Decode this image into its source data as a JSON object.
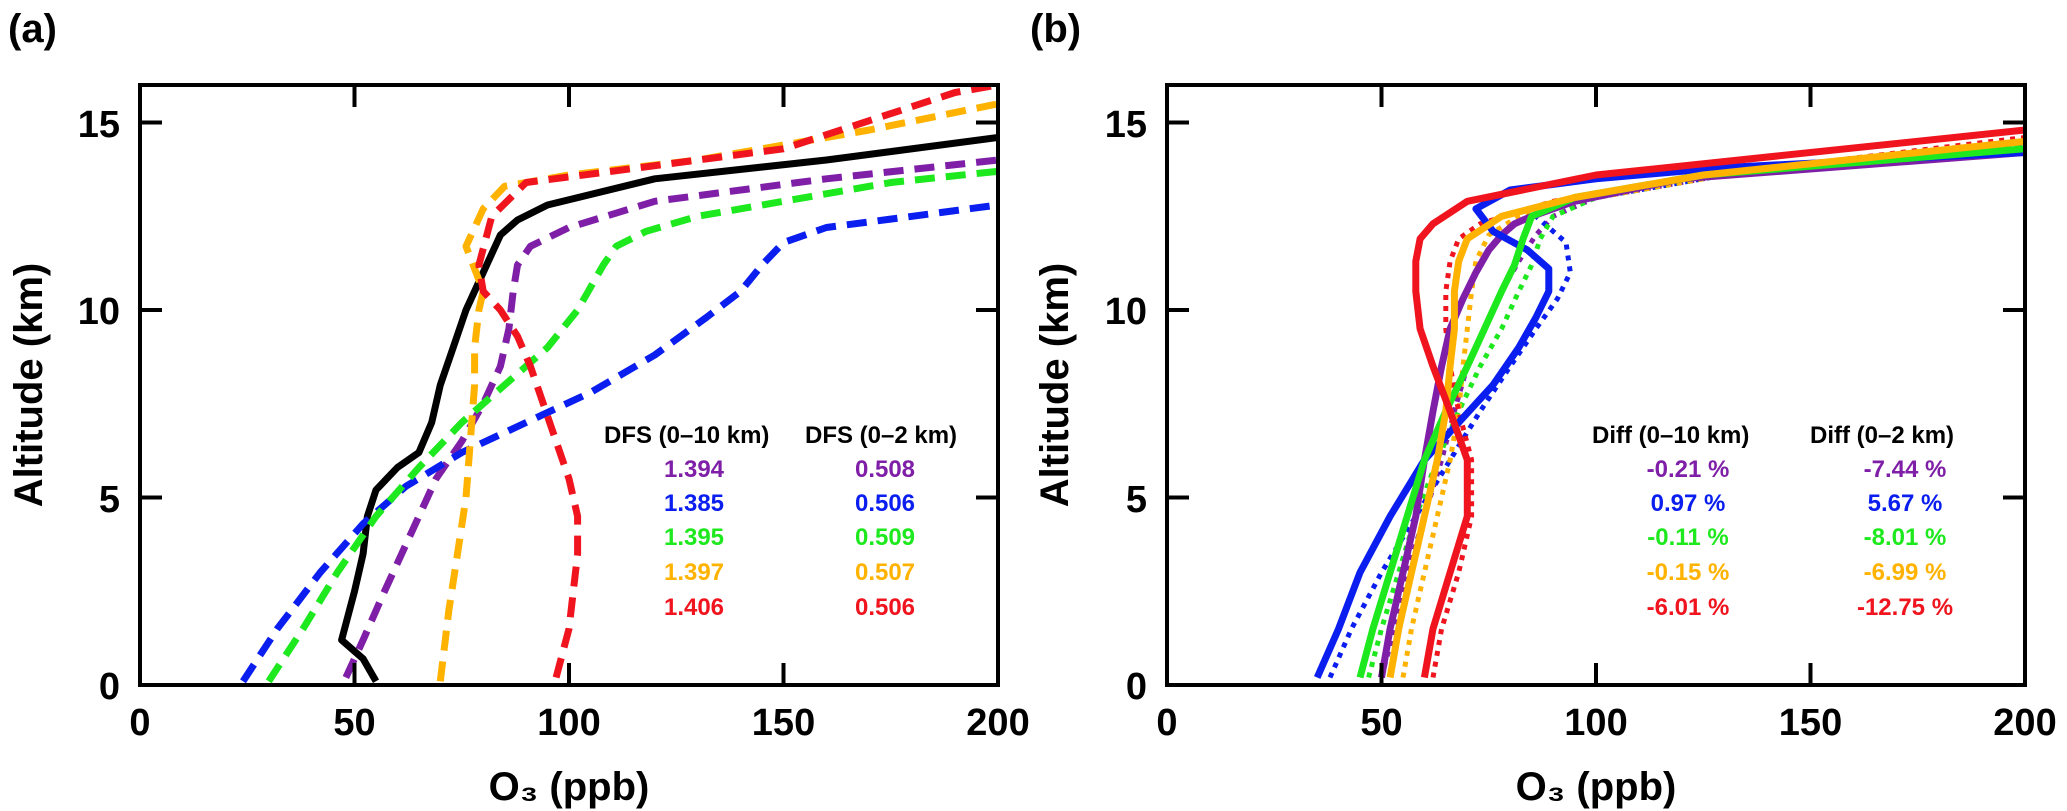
{
  "colors": {
    "black": "#000000",
    "purple": "#7f1fa8",
    "blue": "#0a1ef0",
    "green": "#1ee81e",
    "orange": "#ffb300",
    "red": "#f0141e"
  },
  "chart_data": [
    {
      "type": "line",
      "panel_label": "(a)",
      "title": "",
      "xlabel": "O₃ (ppb)",
      "ylabel": "Altitude (km)",
      "xlim": [
        0,
        200
      ],
      "ylim": [
        0,
        16
      ],
      "xticks": [
        "0",
        "50",
        "100",
        "150",
        "200"
      ],
      "yticks": [
        "0",
        "5",
        "10",
        "15"
      ],
      "xtick_values": [
        0,
        50,
        100,
        150,
        200
      ],
      "ytick_values": [
        0,
        5,
        10,
        15
      ],
      "series": [
        {
          "name": "observed",
          "color": "black",
          "style": "solid",
          "x": [
            55,
            52,
            47,
            50,
            52,
            53,
            55,
            60,
            65,
            68,
            70,
            73,
            76,
            80,
            84,
            88,
            95,
            120,
            160,
            200
          ],
          "y": [
            0.1,
            0.7,
            1.2,
            2.5,
            3.5,
            4.5,
            5.2,
            5.8,
            6.2,
            7.0,
            8.0,
            9.0,
            10.0,
            11.0,
            12.0,
            12.4,
            12.8,
            13.5,
            14.0,
            14.6
          ]
        },
        {
          "name": "purple",
          "color": "purple",
          "style": "dashed",
          "x": [
            48,
            52,
            57,
            61,
            65,
            69,
            75,
            80,
            84,
            86,
            87,
            88,
            91,
            100,
            120,
            160,
            200
          ],
          "y": [
            0.2,
            1.2,
            2.5,
            3.5,
            4.5,
            5.5,
            6.5,
            7.5,
            8.5,
            9.5,
            10.5,
            11.2,
            11.7,
            12.2,
            12.9,
            13.5,
            14.0
          ]
        },
        {
          "name": "blue",
          "color": "blue",
          "style": "dashed",
          "x": [
            24,
            32,
            42,
            52,
            62,
            75,
            90,
            105,
            120,
            132,
            140,
            145,
            150,
            160,
            180,
            200
          ],
          "y": [
            0.1,
            1.5,
            3.0,
            4.3,
            5.3,
            6.2,
            7.0,
            7.8,
            8.8,
            9.8,
            10.5,
            11.2,
            11.8,
            12.2,
            12.5,
            12.8
          ]
        },
        {
          "name": "green",
          "color": "green",
          "style": "dashed",
          "x": [
            30,
            38,
            46,
            55,
            65,
            75,
            85,
            95,
            102,
            106,
            108,
            111,
            118,
            130,
            150,
            175,
            200
          ],
          "y": [
            0.1,
            1.5,
            3.0,
            4.5,
            5.8,
            7.0,
            8.0,
            9.0,
            10.0,
            10.8,
            11.2,
            11.7,
            12.1,
            12.5,
            12.9,
            13.4,
            13.7
          ]
        },
        {
          "name": "orange",
          "color": "orange",
          "style": "dashed",
          "x": [
            70,
            72,
            74,
            76,
            77,
            78,
            78,
            79,
            80,
            79,
            76,
            80,
            85,
            100,
            130,
            170,
            200
          ],
          "y": [
            0.1,
            2.0,
            3.5,
            5.0,
            6.5,
            8.0,
            9.0,
            10.0,
            10.5,
            10.8,
            11.7,
            12.7,
            13.3,
            13.6,
            14.0,
            14.8,
            15.5
          ]
        },
        {
          "name": "red",
          "color": "red",
          "style": "dashed",
          "x": [
            97,
            100,
            101,
            102,
            102,
            100,
            97,
            94,
            91,
            88,
            84,
            80,
            79,
            82,
            90,
            110,
            150,
            190,
            200
          ],
          "y": [
            0.2,
            1.5,
            2.5,
            3.5,
            4.5,
            5.5,
            6.5,
            7.5,
            8.5,
            9.3,
            10.0,
            10.5,
            11.2,
            12.5,
            13.4,
            13.7,
            14.3,
            15.8,
            16.0
          ]
        }
      ],
      "annotation": {
        "headers": [
          "DFS (0–10 km)",
          "DFS (0–2 km)"
        ],
        "rows": [
          {
            "color": "purple",
            "col1": "1.394",
            "col2": "0.508"
          },
          {
            "color": "blue",
            "col1": "1.385",
            "col2": "0.506"
          },
          {
            "color": "green",
            "col1": "1.395",
            "col2": "0.509"
          },
          {
            "color": "orange",
            "col1": "1.397",
            "col2": "0.507"
          },
          {
            "color": "red",
            "col1": "1.406",
            "col2": "0.506"
          }
        ]
      }
    },
    {
      "type": "line",
      "panel_label": "(b)",
      "title": "",
      "xlabel": "O₃ (ppb)",
      "ylabel": "Altitude (km)",
      "xlim": [
        0,
        200
      ],
      "ylim": [
        0,
        16
      ],
      "xticks": [
        "0",
        "50",
        "100",
        "150",
        "200"
      ],
      "yticks": [
        "0",
        "5",
        "10",
        "15"
      ],
      "xtick_values": [
        0,
        50,
        100,
        150,
        200
      ],
      "ytick_values": [
        0,
        5,
        10,
        15
      ],
      "series": [
        {
          "name": "purple-dotted",
          "color": "purple",
          "style": "dotted",
          "x": [
            50,
            53,
            56,
            60,
            64,
            67,
            70,
            74,
            78,
            82,
            86,
            90,
            100,
            130,
            200
          ],
          "y": [
            0.2,
            1.5,
            3.0,
            4.5,
            6.0,
            7.3,
            8.5,
            9.5,
            10.5,
            11.3,
            12.0,
            12.5,
            13.0,
            13.6,
            14.4
          ]
        },
        {
          "name": "blue-dotted",
          "color": "blue",
          "style": "dotted",
          "x": [
            38,
            43,
            50,
            58,
            66,
            73,
            80,
            86,
            91,
            94,
            93,
            88,
            85,
            100,
            130,
            200
          ],
          "y": [
            0.2,
            1.5,
            3.0,
            4.5,
            6.0,
            7.3,
            8.5,
            9.5,
            10.3,
            11.0,
            11.8,
            12.3,
            12.6,
            13.0,
            13.6,
            14.3
          ]
        },
        {
          "name": "green-dotted",
          "color": "green",
          "style": "dotted",
          "x": [
            47,
            50,
            54,
            58,
            63,
            68,
            73,
            78,
            82,
            85,
            87,
            90,
            100,
            130,
            200
          ],
          "y": [
            0.2,
            1.5,
            3.0,
            4.5,
            6.0,
            7.3,
            8.5,
            9.5,
            10.5,
            11.2,
            11.9,
            12.5,
            13.0,
            13.6,
            14.4
          ]
        },
        {
          "name": "orange-dotted",
          "color": "orange",
          "style": "dotted",
          "x": [
            55,
            57,
            60,
            63,
            66,
            68,
            69,
            70,
            71,
            72,
            75,
            82,
            100,
            130,
            200
          ],
          "y": [
            0.2,
            1.5,
            3.0,
            4.5,
            6.0,
            7.3,
            8.5,
            9.5,
            10.5,
            11.3,
            12.0,
            12.5,
            13.0,
            13.6,
            14.5
          ]
        },
        {
          "name": "red-dotted",
          "color": "red",
          "style": "dotted",
          "x": [
            62,
            64,
            68,
            71,
            71,
            68,
            66,
            65,
            65,
            66,
            68,
            73,
            90,
            120,
            200
          ],
          "y": [
            0.2,
            1.5,
            3.0,
            4.5,
            6.0,
            7.3,
            8.5,
            9.5,
            10.5,
            11.3,
            11.9,
            12.3,
            12.9,
            13.5,
            14.6
          ]
        },
        {
          "name": "purple-solid",
          "color": "purple",
          "style": "solid",
          "x": [
            50,
            52,
            55,
            58,
            60,
            62,
            64,
            66,
            69,
            72,
            75,
            78,
            81,
            85,
            95,
            120,
            200
          ],
          "y": [
            0.2,
            1.5,
            3.0,
            4.5,
            6.0,
            7.3,
            8.5,
            9.5,
            10.3,
            11.0,
            11.6,
            12.0,
            12.3,
            12.5,
            12.9,
            13.5,
            14.2
          ]
        },
        {
          "name": "blue-solid",
          "color": "blue",
          "style": "solid",
          "x": [
            35,
            40,
            45,
            52,
            60,
            68,
            76,
            82,
            86,
            89,
            89,
            84,
            76,
            72,
            80,
            100,
            130,
            200
          ],
          "y": [
            0.2,
            1.5,
            3.0,
            4.5,
            6.0,
            7.0,
            8.0,
            9.0,
            9.8,
            10.5,
            11.1,
            11.6,
            12.1,
            12.7,
            13.2,
            13.5,
            13.8,
            14.2
          ]
        },
        {
          "name": "green-solid",
          "color": "green",
          "style": "solid",
          "x": [
            45,
            48,
            52,
            56,
            60,
            65,
            70,
            74,
            78,
            81,
            83,
            85,
            95,
            125,
            200
          ],
          "y": [
            0.2,
            1.5,
            3.0,
            4.5,
            6.0,
            7.3,
            8.5,
            9.5,
            10.5,
            11.2,
            11.9,
            12.5,
            13.0,
            13.6,
            14.3
          ]
        },
        {
          "name": "orange-solid",
          "color": "orange",
          "style": "solid",
          "x": [
            52,
            54,
            57,
            60,
            63,
            65,
            66,
            67,
            67,
            68,
            70,
            78,
            95,
            125,
            200
          ],
          "y": [
            0.2,
            1.5,
            3.0,
            4.5,
            6.0,
            7.3,
            8.5,
            9.5,
            10.5,
            11.3,
            11.9,
            12.5,
            13.0,
            13.6,
            14.5
          ]
        },
        {
          "name": "red-solid",
          "color": "red",
          "style": "solid",
          "x": [
            60,
            62,
            66,
            70,
            70,
            66,
            62,
            59,
            58,
            58,
            59,
            62,
            70,
            100,
            200
          ],
          "y": [
            0.2,
            1.5,
            3.0,
            4.5,
            6.0,
            7.3,
            8.5,
            9.5,
            10.5,
            11.3,
            11.9,
            12.3,
            12.9,
            13.6,
            14.8
          ]
        }
      ],
      "annotation": {
        "headers": [
          "Diff (0–10 km)",
          "Diff  (0–2 km)"
        ],
        "rows": [
          {
            "color": "purple",
            "col1": "-0.21 %",
            "col2": "-7.44 %"
          },
          {
            "color": "blue",
            "col1": "0.97 %",
            "col2": "5.67 %"
          },
          {
            "color": "green",
            "col1": "-0.11 %",
            "col2": "-8.01 %"
          },
          {
            "color": "orange",
            "col1": "-0.15 %",
            "col2": "-6.99 %"
          },
          {
            "color": "red",
            "col1": "-6.01 %",
            "col2": "-12.75 %"
          }
        ]
      }
    }
  ]
}
